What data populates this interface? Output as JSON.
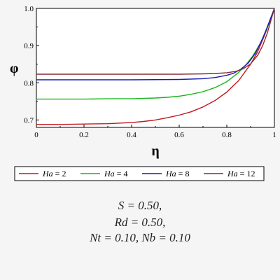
{
  "chart_data": {
    "type": "line",
    "xlabel": "η",
    "ylabel": "φ",
    "xlim": [
      0,
      1
    ],
    "ylim": [
      0.68,
      1.0
    ],
    "x_ticks": [
      "0",
      "0.2",
      "0.4",
      "0.6",
      "0.8",
      "1"
    ],
    "y_ticks": [
      "0.7",
      "0.8",
      "0.9",
      "1.0"
    ],
    "legend_position": "bottom",
    "series": [
      {
        "name": "Ha = 2",
        "name_var": "Ha",
        "name_value": "= 2",
        "color": "#c0191f",
        "x": [
          0,
          0.1,
          0.2,
          0.3,
          0.4,
          0.45,
          0.5,
          0.55,
          0.6,
          0.65,
          0.7,
          0.75,
          0.8,
          0.85,
          0.9,
          0.93,
          0.96,
          0.98,
          1.0
        ],
        "y": [
          0.688,
          0.688,
          0.689,
          0.69,
          0.693,
          0.696,
          0.7,
          0.706,
          0.713,
          0.722,
          0.735,
          0.752,
          0.775,
          0.806,
          0.85,
          0.884,
          0.93,
          0.964,
          1.0
        ]
      },
      {
        "name": "Ha = 4",
        "name_var": "Ha",
        "name_value": "= 4",
        "color": "#19b419",
        "x": [
          0,
          0.1,
          0.2,
          0.3,
          0.4,
          0.5,
          0.55,
          0.6,
          0.65,
          0.7,
          0.75,
          0.8,
          0.85,
          0.88,
          0.91,
          0.94,
          0.97,
          1.0
        ],
        "y": [
          0.756,
          0.756,
          0.756,
          0.757,
          0.757,
          0.759,
          0.761,
          0.764,
          0.769,
          0.776,
          0.787,
          0.803,
          0.828,
          0.848,
          0.873,
          0.905,
          0.948,
          1.0
        ]
      },
      {
        "name": "Ha = 8",
        "name_var": "Ha",
        "name_value": "= 8",
        "color": "#1919b4",
        "x": [
          0,
          0.2,
          0.4,
          0.6,
          0.7,
          0.75,
          0.8,
          0.83,
          0.86,
          0.89,
          0.92,
          0.95,
          0.97,
          1.0
        ],
        "y": [
          0.808,
          0.808,
          0.808,
          0.809,
          0.811,
          0.814,
          0.82,
          0.826,
          0.837,
          0.853,
          0.879,
          0.918,
          0.95,
          1.0
        ]
      },
      {
        "name": "Ha = 12",
        "name_var": "Ha",
        "name_value": "= 12",
        "color": "#8c2832",
        "x": [
          0,
          0.2,
          0.4,
          0.6,
          0.7,
          0.75,
          0.8,
          0.84,
          0.87,
          0.9,
          0.93,
          0.95,
          0.97,
          0.99,
          1.0
        ],
        "y": [
          0.823,
          0.823,
          0.823,
          0.823,
          0.824,
          0.825,
          0.827,
          0.831,
          0.838,
          0.851,
          0.874,
          0.899,
          0.933,
          0.978,
          1.0
        ]
      }
    ]
  },
  "parameters": {
    "line1": "S = 0.50,",
    "line2": "Rd = 0.50,",
    "line3": "Nt = 0.10, Nb = 0.10"
  }
}
